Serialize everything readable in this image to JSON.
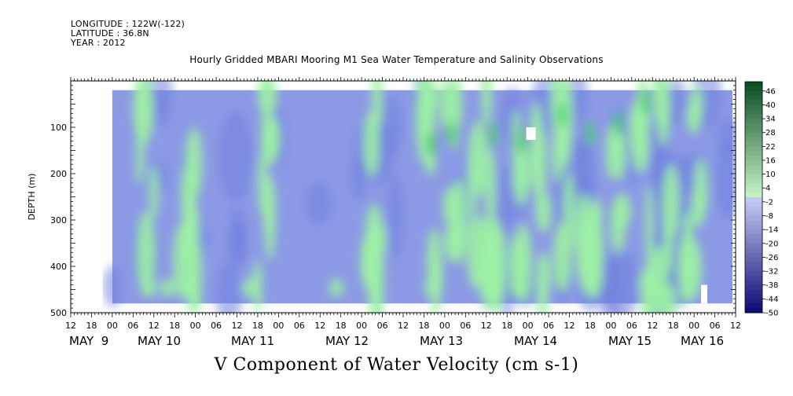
{
  "header": {
    "longitude": "LONGITUDE : 122W(-122)",
    "latitude": "LATITUDE : 36.8N",
    "year": "YEAR : 2012"
  },
  "chart_data": {
    "type": "heatmap",
    "title": "Hourly Gridded MBARI Mooring M1 Sea Water Temperature and Salinity Observations",
    "bottom_title": "V Component of Water Velocity (cm s-1)",
    "ylabel": "DEPTH (m)",
    "ylim": [
      0,
      500
    ],
    "y_inverted": true,
    "y_ticks": [
      "100",
      "200",
      "300",
      "400",
      "500"
    ],
    "x_hour_ticks": [
      "12",
      "18",
      "00",
      "06",
      "12",
      "18",
      "00",
      "06",
      "12",
      "18",
      "00",
      "06",
      "12",
      "18",
      "00",
      "06",
      "12",
      "18",
      "00",
      "06",
      "12",
      "18",
      "00",
      "06",
      "12",
      "18",
      "00",
      "06",
      "12",
      "18",
      "00",
      "06",
      "12"
    ],
    "x_day_labels": [
      "MAY  9",
      "MAY 10",
      "MAY 11",
      "MAY 12",
      "MAY 13",
      "MAY 14",
      "MAY 15",
      "MAY 16"
    ],
    "x_range": [
      "2012-05-08 12:00",
      "2012-05-16 12:00"
    ],
    "data_time_range": [
      "2012-05-09 00:00",
      "2012-05-16 12:00"
    ],
    "data_depth_range": [
      20,
      480
    ],
    "colorbar_levels": [
      "46",
      "40",
      "34",
      "28",
      "22",
      "16",
      "10",
      "4",
      "-2",
      "-8",
      "-14",
      "-20",
      "-26",
      "-32",
      "-38",
      "-44",
      "-50"
    ],
    "colorbar_min": -50,
    "colorbar_max": 50,
    "colors": {
      "strong_negative": "#101070",
      "weak_negative": "#8c9ae6",
      "weak_positive": "#9cefa4",
      "strong_positive": "#0d4d26"
    },
    "summary": "Mostly weak negative (light blue) velocities with alternating near-vertical bands of weak positive (light green) values through the water column; strongest positive bands around May 12-14."
  }
}
